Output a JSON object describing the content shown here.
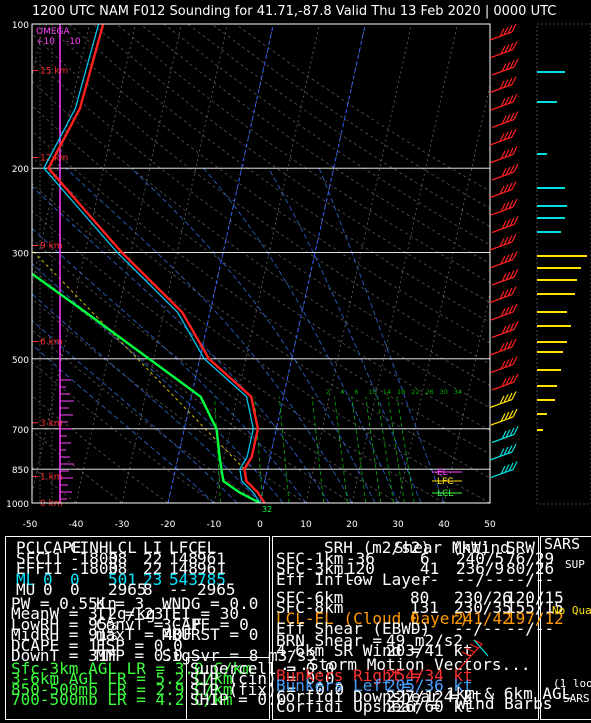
{
  "title": "1200 UTC NAM F012 Sounding for 41.71,-87.8 Valid  Thu 13 Feb 2020 | 0000 UTC",
  "chart_data": {
    "type": "skew-t",
    "pressure_levels": [
      100,
      200,
      300,
      500,
      700,
      850,
      1000
    ],
    "x_ticks": [
      -50,
      -40,
      -30,
      -20,
      -10,
      0,
      10,
      20,
      30,
      40,
      50
    ],
    "xlim": [
      -50,
      50
    ],
    "height_labels": [
      "15 km",
      "12 km",
      "9 km",
      "6 km",
      "3 km",
      "1 km",
      "0 km"
    ],
    "height_label_pressures": [
      125,
      190,
      290,
      460,
      680,
      880,
      1000
    ],
    "omega_labels": [
      "OMEGA",
      "+10",
      "-10"
    ],
    "mixing_ratio_labels": [
      "2",
      "4",
      "6",
      "10",
      "14",
      "18",
      "22",
      "26",
      "30",
      "34"
    ],
    "surface_temp_label": "32",
    "parcel_labels": [
      "EL",
      "LFC",
      "LCL"
    ],
    "temperature": [
      {
        "p": 100,
        "t": -57
      },
      {
        "p": 150,
        "t": -58
      },
      {
        "p": 200,
        "t": -62
      },
      {
        "p": 250,
        "t": -51
      },
      {
        "p": 300,
        "t": -42
      },
      {
        "p": 400,
        "t": -26
      },
      {
        "p": 500,
        "t": -18
      },
      {
        "p": 600,
        "t": -7
      },
      {
        "p": 700,
        "t": -4
      },
      {
        "p": 800,
        "t": -4
      },
      {
        "p": 850,
        "t": -5
      },
      {
        "p": 900,
        "t": -4
      },
      {
        "p": 950,
        "t": -1
      },
      {
        "p": 1000,
        "t": 1
      }
    ],
    "dewpoint": [
      {
        "p": 100,
        "t": -58
      },
      {
        "p": 150,
        "t": -59
      },
      {
        "p": 200,
        "t": -63
      },
      {
        "p": 250,
        "t": -52
      },
      {
        "p": 300,
        "t": -43
      },
      {
        "p": 400,
        "t": -27
      },
      {
        "p": 500,
        "t": -19
      },
      {
        "p": 600,
        "t": -8
      },
      {
        "p": 700,
        "t": -5
      },
      {
        "p": 800,
        "t": -5
      },
      {
        "p": 850,
        "t": -6
      },
      {
        "p": 900,
        "t": -5
      },
      {
        "p": 950,
        "t": -2
      },
      {
        "p": 1000,
        "t": 0
      }
    ],
    "wetbulb": [
      {
        "p": 100,
        "t": -88
      },
      {
        "p": 150,
        "t": -96
      },
      {
        "p": 170,
        "t": -100
      },
      {
        "p": 200,
        "t": -92
      },
      {
        "p": 250,
        "t": -79
      },
      {
        "p": 300,
        "t": -68
      },
      {
        "p": 400,
        "t": -47
      },
      {
        "p": 500,
        "t": -31
      },
      {
        "p": 600,
        "t": -18
      },
      {
        "p": 700,
        "t": -13
      },
      {
        "p": 800,
        "t": -11
      },
      {
        "p": 850,
        "t": -10
      },
      {
        "p": 900,
        "t": -9
      },
      {
        "p": 950,
        "t": -5
      },
      {
        "p": 1000,
        "t": 0
      }
    ]
  },
  "parcel_table": {
    "headers": [
      "PCL",
      "CAPE",
      "CINH",
      "LCL",
      "LI",
      "LFC",
      "EL"
    ],
    "rows": [
      [
        "SFC",
        "11",
        "-1800",
        "38",
        "22",
        "148",
        "961"
      ],
      [
        "EFF",
        "11",
        "-1800",
        "38",
        "22",
        "148",
        "961"
      ],
      [
        "ML",
        "0",
        "0",
        "501",
        "23",
        "543",
        "785"
      ],
      [
        "MU",
        "0",
        "0",
        "2965",
        "8",
        "--",
        "2965"
      ]
    ]
  },
  "thermo_indices": {
    "col1": [
      "PW = 0.55in",
      "MeanW = 3.2g/kg",
      "LowRH = 95%",
      "MidRH = 91%",
      "DCAPE = 11",
      "DownT = 31F"
    ],
    "col2": [
      "K = 3",
      "TT = 23",
      "ConvT = --F",
      "maxT = 40F",
      "ESP = 0.0",
      "MMP = 0.0"
    ],
    "col3": [
      "WNDG = 0.0",
      "TEI = 30",
      "3CAPE = 0",
      "MBURST = 0",
      "",
      "SigSvr = 8 m3/s3"
    ]
  },
  "lapse_rates": [
    "Sfc-3km AGL LR = 3.0 C/km",
    "3-6km AGL LR = 5.2 C/km",
    "850-500mb LR = 2.9 C/km",
    "700-500mb LR = 4.2 C/km"
  ],
  "composite": [
    "Supercell = 0.0",
    "STP (cin) = 0.0",
    "STP (fix) = -0.0",
    "SHIP = 0.0"
  ],
  "kinematic": {
    "headers": [
      "SRH (m2/s2)",
      "Shear (kt)",
      "MnWind",
      "SRW"
    ],
    "rows": [
      [
        "SFC-1km",
        "-36",
        "6",
        "240/5",
        "76/29"
      ],
      [
        "SFC-3km",
        "120",
        "41",
        "236/9",
        "80/26"
      ],
      [
        "Eff Inflow Layer",
        "--",
        "--",
        "--/--",
        "--/--"
      ],
      [
        "",
        "",
        "",
        "",
        ""
      ],
      [
        "SFC-6km",
        "80",
        "230/26",
        "120/15"
      ],
      [
        "SFC-8km",
        "131",
        "230/35",
        "155/15"
      ],
      [
        "LCL-EL (Cloud Layer)",
        "0",
        "241/42",
        "197/12"
      ],
      [
        "Eff Shear (EBWD)",
        "--",
        "--/--",
        "--/--"
      ]
    ],
    "brn_shear": "BRN Shear =",
    "brn_shear_val": "49 m2/s2",
    "sr_wind": "4-6km SR Wind =",
    "sr_wind_val": "203/41 kt",
    "storm_header": "...Storm Motion Vectors...",
    "vectors": [
      [
        "Bunkers Right =",
        "254/34 kt"
      ],
      [
        "Bunkers Left =",
        "205/36 kt"
      ],
      [
        "Corfidi Downshear =",
        "227/124 kt"
      ],
      [
        "Corfidi Upshear =",
        "226/60 kt"
      ]
    ],
    "barb_caption_1": "1km & 6km AGL",
    "barb_caption_2": "Wind Barbs"
  },
  "sars": {
    "title": "SARS",
    "sup": "SUP",
    "noqual": "No Qua",
    "loose": "(1 loos",
    "footer": "SARS"
  },
  "colors": {
    "temperature": "#ff2020",
    "dewpoint": "#00ff40",
    "wetbulb": "#00d0ff",
    "isobar": "#ffffff",
    "isotherm": "#666666",
    "dry_adiabat": "#555555",
    "moist_adiabat": "#2a5fbf",
    "mixing_ratio": "#00b000",
    "height": "#ff3030",
    "omega": "#ff40ff"
  }
}
